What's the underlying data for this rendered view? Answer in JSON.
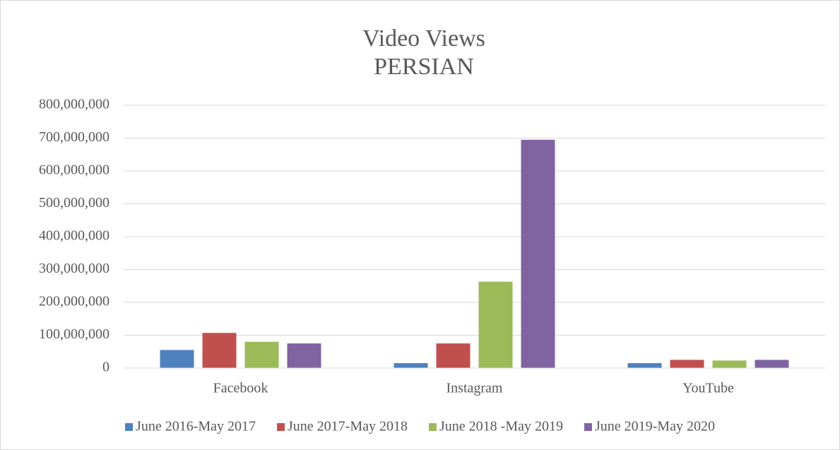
{
  "chart_data": {
    "type": "bar",
    "title": "Video Views",
    "subtitle": "PERSIAN",
    "categories": [
      "Facebook",
      "Instagram",
      "YouTube"
    ],
    "series": [
      {
        "name": "June 2016-May 2017",
        "color": "#4f81bd",
        "values": [
          55000000,
          15000000,
          15000000
        ]
      },
      {
        "name": "June 2017-May 2018",
        "color": "#c0504d",
        "values": [
          107000000,
          75000000,
          25000000
        ]
      },
      {
        "name": "June 2018 -May 2019",
        "color": "#9bbb59",
        "values": [
          80000000,
          263000000,
          23000000
        ]
      },
      {
        "name": "June 2019-May 2020",
        "color": "#8064a2",
        "values": [
          75000000,
          695000000,
          25000000
        ]
      }
    ],
    "ylim": [
      0,
      800000000
    ],
    "yticks": [
      0,
      {
        "value": 100000000,
        "label": "100,000,000"
      },
      {
        "value": 200000000,
        "label": "200,000,000"
      },
      {
        "value": 300000000,
        "label": "300,000,000"
      },
      {
        "value": 400000000,
        "label": "400,000,000"
      },
      {
        "value": 500000000,
        "label": "500,000,000"
      },
      {
        "value": 600000000,
        "label": "600,000,000"
      },
      {
        "value": 700000000,
        "label": "700,000,000"
      },
      {
        "value": 800000000,
        "label": "800,000,000"
      }
    ],
    "grid": true,
    "legend": "bottom"
  }
}
